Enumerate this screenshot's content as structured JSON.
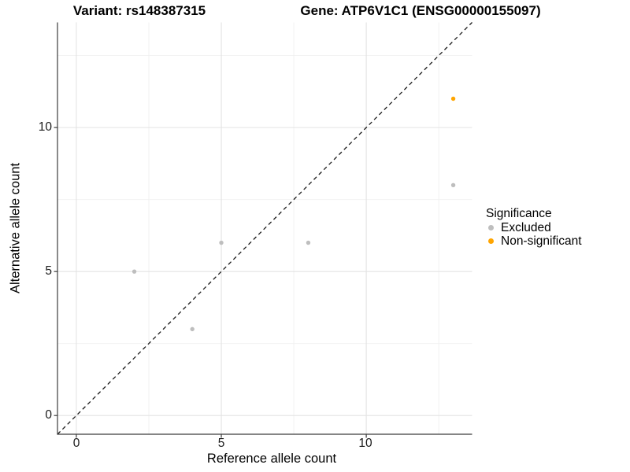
{
  "titles": {
    "left": "Variant: rs148387315",
    "right": "Gene: ATP6V1C1 (ENSG00000155097)"
  },
  "chart_data": {
    "type": "scatter",
    "xlabel": "Reference allele count",
    "ylabel": "Alternative allele count",
    "xlim": [
      -0.65,
      13.65
    ],
    "ylim": [
      -0.65,
      13.65
    ],
    "x_ticks": [
      0,
      5,
      10
    ],
    "y_ticks": [
      0,
      5,
      10
    ],
    "x_minor_ticks": [
      2.5,
      7.5,
      12.5
    ],
    "y_minor_ticks": [
      2.5,
      7.5,
      12.5
    ],
    "grid": true,
    "legend_position": "right",
    "series": [
      {
        "name": "Excluded",
        "color": "#BEBEBE",
        "points": [
          [
            2,
            5
          ],
          [
            4,
            3
          ],
          [
            5,
            6
          ],
          [
            8,
            6
          ],
          [
            13,
            8
          ]
        ]
      },
      {
        "name": "Non-significant",
        "color": "#FFA500",
        "points": [
          [
            13,
            11
          ]
        ]
      }
    ],
    "reference_line": {
      "slope": 1,
      "intercept": 0,
      "style": "dashed",
      "color": "#1a1a1a"
    }
  },
  "legend": {
    "title": "Significance",
    "items": [
      {
        "label": "Excluded",
        "color": "#BEBEBE"
      },
      {
        "label": "Non-significant",
        "color": "#FFA500"
      }
    ]
  },
  "colors": {
    "background": "#ffffff",
    "grid_major": "#e3e3e3",
    "grid_minor": "#f0f0f0",
    "axis_line": "#3c3c3c",
    "text": "#000000"
  }
}
